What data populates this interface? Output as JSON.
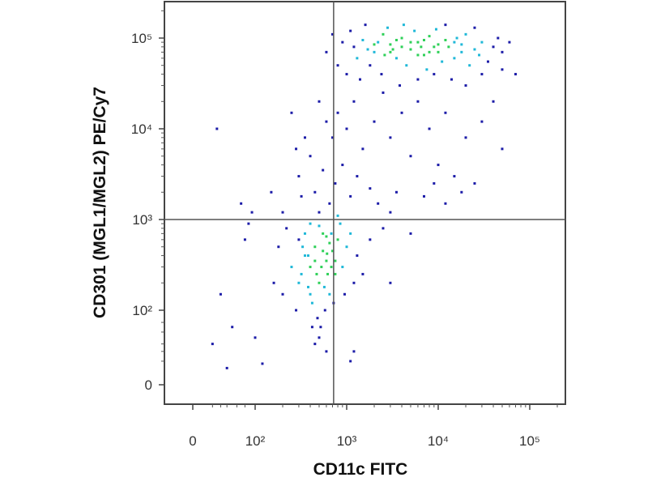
{
  "chart_data": {
    "type": "scatter",
    "subtype": "flow-cytometry-density-dot-plot",
    "title": "",
    "xlabel": "CD11c FITC",
    "ylabel": "CD301 (MGL1/MGL2) PE/Cy7",
    "x_scale": "biexponential",
    "y_scale": "biexponential",
    "xlim": [
      0,
      250000
    ],
    "ylim": [
      0,
      260000
    ],
    "x_ticks": [
      0,
      100,
      1000,
      10000,
      100000
    ],
    "x_tick_labels": [
      "0",
      "10²",
      "10³",
      "10⁴",
      "10⁵"
    ],
    "y_ticks": [
      0,
      100,
      1000,
      10000,
      100000
    ],
    "y_tick_labels": [
      "0",
      "10²",
      "10³",
      "10⁴",
      "10⁵"
    ],
    "quadrant_gate": {
      "x": 720,
      "y": 1000
    },
    "grid": false,
    "density_colors": [
      "#1c1ca8",
      "#1fb8d8",
      "#2ed058",
      "#e0a018"
    ],
    "points": [
      [
        1200,
        80000
      ],
      [
        1500,
        95000
      ],
      [
        2000,
        70000
      ],
      [
        2500,
        110000
      ],
      [
        3000,
        85000
      ],
      [
        3500,
        60000
      ],
      [
        4000,
        100000
      ],
      [
        5000,
        75000
      ],
      [
        6000,
        90000
      ],
      [
        7000,
        65000
      ],
      [
        8000,
        105000
      ],
      [
        9000,
        80000
      ],
      [
        10000,
        70000
      ],
      [
        12000,
        95000
      ],
      [
        15000,
        60000
      ],
      [
        18000,
        85000
      ],
      [
        20000,
        110000
      ],
      [
        25000,
        75000
      ],
      [
        30000,
        90000
      ],
      [
        35000,
        55000
      ],
      [
        40000,
        80000
      ],
      [
        1100,
        120000
      ],
      [
        1300,
        60000
      ],
      [
        1800,
        50000
      ],
      [
        2200,
        90000
      ],
      [
        2800,
        130000
      ],
      [
        3200,
        75000
      ],
      [
        4500,
        50000
      ],
      [
        5500,
        120000
      ],
      [
        6500,
        80000
      ],
      [
        7500,
        45000
      ],
      [
        9500,
        125000
      ],
      [
        11000,
        55000
      ],
      [
        13000,
        80000
      ],
      [
        16000,
        100000
      ],
      [
        22000,
        50000
      ],
      [
        28000,
        65000
      ],
      [
        45000,
        100000
      ],
      [
        50000,
        70000
      ],
      [
        900,
        90000
      ],
      [
        800,
        50000
      ],
      [
        1000,
        40000
      ],
      [
        1400,
        35000
      ],
      [
        2400,
        40000
      ],
      [
        3800,
        30000
      ],
      [
        6000,
        35000
      ],
      [
        9000,
        40000
      ],
      [
        14000,
        35000
      ],
      [
        20000,
        30000
      ],
      [
        30000,
        40000
      ],
      [
        50000,
        45000
      ],
      [
        700,
        110000
      ],
      [
        600,
        70000
      ],
      [
        1600,
        140000
      ],
      [
        4200,
        140000
      ],
      [
        12000,
        140000
      ],
      [
        25000,
        130000
      ],
      [
        3000,
        70000
      ],
      [
        4000,
        80000
      ],
      [
        5000,
        90000
      ],
      [
        2000,
        85000
      ],
      [
        7000,
        95000
      ],
      [
        10000,
        85000
      ],
      [
        15000,
        90000
      ],
      [
        1700,
        75000
      ],
      [
        2600,
        65000
      ],
      [
        8000,
        70000
      ],
      [
        18000,
        70000
      ],
      [
        3500,
        95000
      ],
      [
        6000,
        65000
      ],
      [
        500,
        20000
      ],
      [
        600,
        12000
      ],
      [
        700,
        8000
      ],
      [
        800,
        15000
      ],
      [
        1000,
        10000
      ],
      [
        1200,
        20000
      ],
      [
        1500,
        6000
      ],
      [
        2000,
        12000
      ],
      [
        2500,
        25000
      ],
      [
        3000,
        8000
      ],
      [
        4000,
        15000
      ],
      [
        5000,
        5000
      ],
      [
        6000,
        20000
      ],
      [
        8000,
        10000
      ],
      [
        10000,
        4000
      ],
      [
        12000,
        15000
      ],
      [
        15000,
        3000
      ],
      [
        20000,
        8000
      ],
      [
        25000,
        2500
      ],
      [
        30000,
        12000
      ],
      [
        400,
        5000
      ],
      [
        350,
        8000
      ],
      [
        300,
        3000
      ],
      [
        450,
        2000
      ],
      [
        550,
        3500
      ],
      [
        650,
        1500
      ],
      [
        750,
        2500
      ],
      [
        900,
        4000
      ],
      [
        1100,
        1800
      ],
      [
        1300,
        3000
      ],
      [
        1800,
        2200
      ],
      [
        2200,
        1500
      ],
      [
        3500,
        2000
      ],
      [
        7000,
        1800
      ],
      [
        9000,
        2500
      ],
      [
        12000,
        1500
      ],
      [
        18000,
        2000
      ],
      [
        250,
        15000
      ],
      [
        280,
        6000
      ],
      [
        320,
        1800
      ],
      [
        500,
        1200
      ],
      [
        800,
        1100
      ],
      [
        40000,
        20000
      ],
      [
        50000,
        6000
      ],
      [
        3000,
        1200
      ],
      [
        300,
        600
      ],
      [
        350,
        400
      ],
      [
        400,
        300
      ],
      [
        450,
        500
      ],
      [
        500,
        200
      ],
      [
        550,
        700
      ],
      [
        600,
        350
      ],
      [
        650,
        150
      ],
      [
        700,
        450
      ],
      [
        750,
        250
      ],
      [
        800,
        600
      ],
      [
        900,
        300
      ],
      [
        1000,
        500
      ],
      [
        1200,
        200
      ],
      [
        250,
        300
      ],
      [
        200,
        150
      ],
      [
        220,
        800
      ],
      [
        280,
        100
      ],
      [
        320,
        250
      ],
      [
        380,
        180
      ],
      [
        420,
        120
      ],
      [
        480,
        80
      ],
      [
        520,
        60
      ],
      [
        580,
        100
      ],
      [
        620,
        250
      ],
      [
        680,
        700
      ],
      [
        720,
        120
      ],
      [
        850,
        900
      ],
      [
        950,
        150
      ],
      [
        1100,
        700
      ],
      [
        1300,
        400
      ],
      [
        1500,
        250
      ],
      [
        180,
        500
      ],
      [
        160,
        200
      ],
      [
        400,
        900
      ],
      [
        500,
        850
      ],
      [
        600,
        650
      ],
      [
        350,
        700
      ],
      [
        450,
        350
      ],
      [
        550,
        450
      ],
      [
        650,
        550
      ],
      [
        750,
        350
      ],
      [
        300,
        200
      ],
      [
        400,
        150
      ],
      [
        500,
        40
      ],
      [
        450,
        30
      ],
      [
        600,
        20
      ],
      [
        420,
        60
      ],
      [
        380,
        400
      ],
      [
        330,
        500
      ],
      [
        470,
        250
      ],
      [
        530,
        300
      ],
      [
        570,
        180
      ],
      [
        610,
        420
      ],
      [
        680,
        300
      ],
      [
        15,
        10000
      ],
      [
        60,
        1500
      ],
      [
        80,
        900
      ],
      [
        20,
        150
      ],
      [
        10,
        30
      ],
      [
        40,
        60
      ],
      [
        100,
        40
      ],
      [
        120,
        8
      ],
      [
        90,
        1200
      ],
      [
        70,
        600
      ],
      [
        1200,
        20
      ],
      [
        1100,
        10
      ],
      [
        1800,
        600
      ],
      [
        3000,
        200
      ],
      [
        30,
        5
      ],
      [
        150,
        2000
      ],
      [
        200,
        1200
      ],
      [
        2500,
        800
      ],
      [
        5000,
        700
      ],
      [
        60000,
        90000
      ],
      [
        70000,
        40000
      ]
    ]
  }
}
